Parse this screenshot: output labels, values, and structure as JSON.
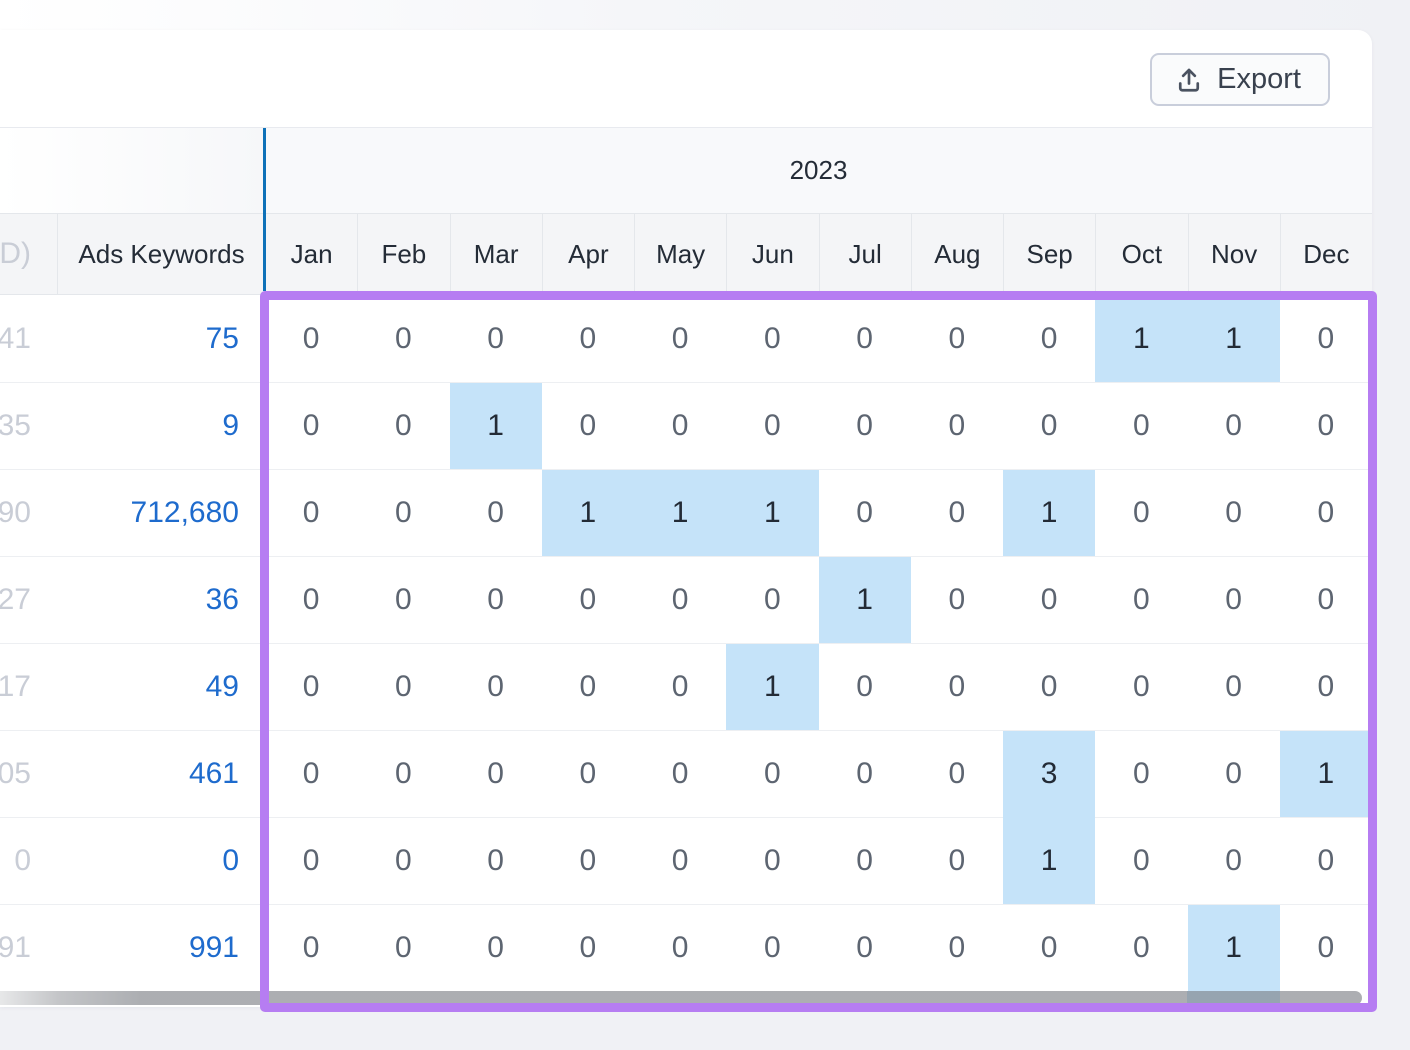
{
  "toolbar": {
    "export_label": "Export"
  },
  "table": {
    "year_header": "2023",
    "columns": {
      "partial_header": "D)",
      "ads_keywords_header": "Ads Keywords",
      "months": [
        "Jan",
        "Feb",
        "Mar",
        "Apr",
        "May",
        "Jun",
        "Jul",
        "Aug",
        "Sep",
        "Oct",
        "Nov",
        "Dec"
      ]
    },
    "rows": [
      {
        "left_fragment": "41",
        "ads_keywords": "75",
        "monthly_values": [
          0,
          0,
          0,
          0,
          0,
          0,
          0,
          0,
          0,
          1,
          1,
          0
        ],
        "highlighted_months": [
          "Oct",
          "Nov"
        ]
      },
      {
        "left_fragment": "35",
        "ads_keywords": "9",
        "monthly_values": [
          0,
          0,
          1,
          0,
          0,
          0,
          0,
          0,
          0,
          0,
          0,
          0
        ],
        "highlighted_months": [
          "Mar"
        ]
      },
      {
        "left_fragment": "90",
        "ads_keywords": "712,680",
        "monthly_values": [
          0,
          0,
          0,
          1,
          1,
          1,
          0,
          0,
          1,
          0,
          0,
          0
        ],
        "highlighted_months": [
          "Apr",
          "May",
          "Jun",
          "Sep"
        ]
      },
      {
        "left_fragment": "27",
        "ads_keywords": "36",
        "monthly_values": [
          0,
          0,
          0,
          0,
          0,
          0,
          1,
          0,
          0,
          0,
          0,
          0
        ],
        "highlighted_months": [
          "Jul"
        ]
      },
      {
        "left_fragment": "17",
        "ads_keywords": "49",
        "monthly_values": [
          0,
          0,
          0,
          0,
          0,
          1,
          0,
          0,
          0,
          0,
          0,
          0
        ],
        "highlighted_months": [
          "Jun"
        ]
      },
      {
        "left_fragment": "05",
        "ads_keywords": "461",
        "monthly_values": [
          0,
          0,
          0,
          0,
          0,
          0,
          0,
          0,
          3,
          0,
          0,
          1
        ],
        "highlighted_months": [
          "Sep",
          "Dec"
        ]
      },
      {
        "left_fragment": "0",
        "ads_keywords": "0",
        "monthly_values": [
          0,
          0,
          0,
          0,
          0,
          0,
          0,
          0,
          1,
          0,
          0,
          0
        ],
        "highlighted_months": [
          "Sep"
        ]
      },
      {
        "left_fragment": "91",
        "ads_keywords": "991",
        "monthly_values": [
          0,
          0,
          0,
          0,
          0,
          0,
          0,
          0,
          0,
          0,
          1,
          0
        ],
        "highlighted_months": [
          "Nov"
        ]
      }
    ]
  },
  "colors": {
    "cell_highlight": "#c5e3f9",
    "annotation_purple": "#b67df2",
    "link_blue": "#1e6bcd",
    "focus_indicator_blue": "#0e71b8",
    "page_background": "#f0f1f5"
  }
}
